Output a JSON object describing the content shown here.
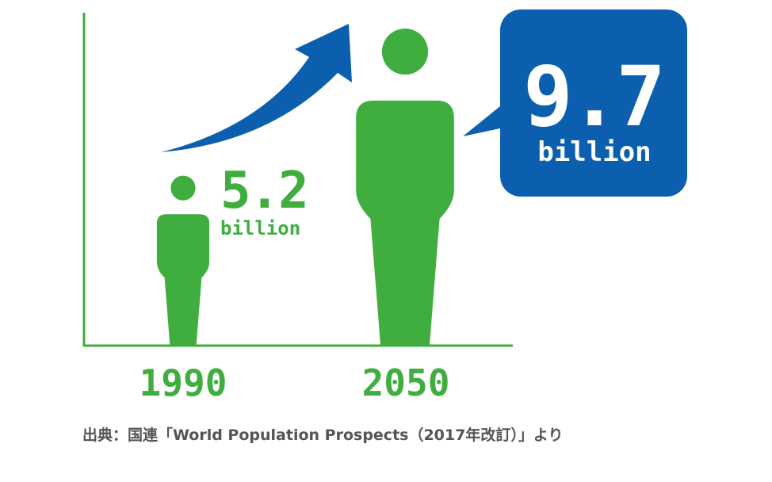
{
  "colors": {
    "green": "#3FAE3F",
    "blue": "#0B5FAE",
    "white": "#FFFFFF",
    "source_text": "#555555"
  },
  "icons": [
    "person-icon-small",
    "person-icon-large",
    "growth-arrow-icon",
    "speech-bubble-icon"
  ],
  "chart_data": {
    "type": "bar",
    "categories": [
      "1990",
      "2050"
    ],
    "series": [
      {
        "values": [
          5.2,
          9.7
        ]
      }
    ],
    "data_labels": [
      {
        "value": "5.2",
        "unit": "billion"
      },
      {
        "value": "9.7",
        "unit": "billion"
      }
    ],
    "ylim": [
      0,
      9.7
    ],
    "grid": false,
    "legend": "none"
  },
  "source": "出典：国連「World Population Prospects（2017年改訂）」より"
}
